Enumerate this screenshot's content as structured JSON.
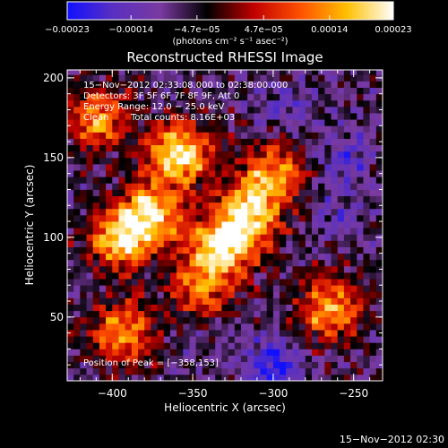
{
  "chart_data": {
    "type": "heatmap",
    "title": "Reconstructed RHESSI Image",
    "xlabel": "Heliocentric X (arcsec)",
    "ylabel": "Heliocentric Y (arcsec)",
    "xlim": [
      -428,
      -232
    ],
    "ylim": [
      10,
      205
    ],
    "x_ticks": [
      -400,
      -350,
      -300,
      -250
    ],
    "x_tick_labels": [
      "−400",
      "−350",
      "−300",
      "−250"
    ],
    "y_ticks": [
      50,
      100,
      150,
      200
    ],
    "y_tick_labels": [
      "50",
      "100",
      "150",
      "200"
    ],
    "colorbar": {
      "min": -0.00023,
      "max": 0.00023,
      "tick_values": [
        -0.00023,
        -0.00014,
        -4.7e-05,
        4.7e-05,
        0.00014,
        0.00023
      ],
      "tick_labels": [
        "−0.00023",
        "−0.00014",
        "−4.7e−05",
        "4.7e−05",
        "0.00014",
        "0.00023"
      ],
      "units_label": "(photons cm⁻² s⁻¹ asec⁻²)",
      "colors": [
        "#1010ff",
        "#5a30c0",
        "#7a3aa0",
        "#000000",
        "#c00000",
        "#ff5000",
        "#ffc000",
        "#ffffff"
      ]
    },
    "annotations": {
      "time_range": "15−Nov−2012 02:33:08.000 to 02:38:00.000",
      "detectors": "Detectors: 3F 5F 6F 7F 8F 9F, Att 0",
      "energy_range": "Energy Range: 12.0 − 25.0 keV",
      "algorithm": "Clean",
      "total_counts": "Total counts: 8.16E+03",
      "peak": "Position of Peak = [−358,153]"
    },
    "bright_sources": [
      {
        "x": -358,
        "y": 153,
        "value": 0.00023
      },
      {
        "x": -330,
        "y": 95,
        "value": 0.00021
      },
      {
        "x": -395,
        "y": 100,
        "value": 0.0002
      },
      {
        "x": -375,
        "y": 115,
        "value": 0.00019
      },
      {
        "x": -315,
        "y": 115,
        "value": 0.00018
      },
      {
        "x": -300,
        "y": 140,
        "value": 0.00016
      },
      {
        "x": -265,
        "y": 55,
        "value": 0.00017
      },
      {
        "x": -395,
        "y": 40,
        "value": 0.00016
      },
      {
        "x": -410,
        "y": 175,
        "value": 0.00015
      },
      {
        "x": -345,
        "y": 70,
        "value": 0.00012
      }
    ],
    "dim_regions": [
      {
        "x": -290,
        "y": 180,
        "value": -0.0001
      },
      {
        "x": -255,
        "y": 150,
        "value": -0.00012
      },
      {
        "x": -300,
        "y": 20,
        "value": -0.00023
      },
      {
        "x": -260,
        "y": 115,
        "value": -9e-05
      }
    ]
  },
  "footer": {
    "timestamp": "15−Nov−2012 02:30"
  }
}
